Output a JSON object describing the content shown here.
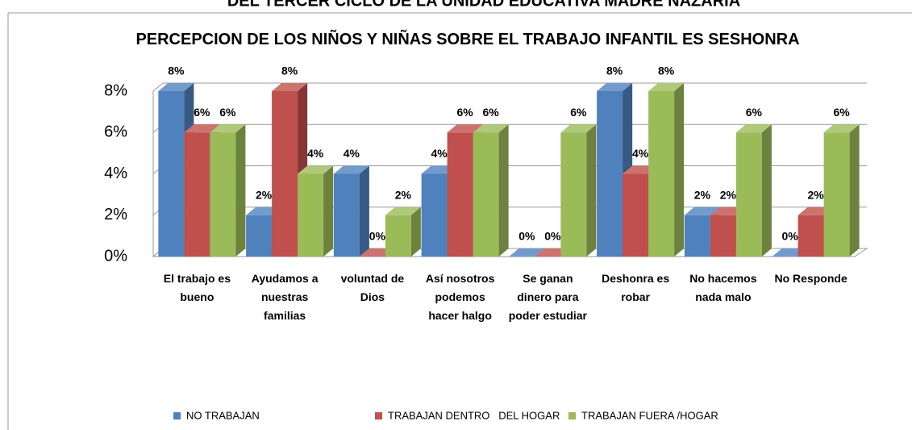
{
  "heading": "DEL TERCER CICLO DE LA UNIDAD EDUCATIVA MADRE NAZARIA",
  "chart_data": {
    "type": "bar",
    "title": "PERCEPCION DE LOS NIÑOS Y NIÑAS SOBRE EL TRABAJO INFANTIL ES SESHONRA",
    "categories": [
      "El trabajo es bueno",
      "Ayudamos a nuestras familias",
      "voluntad de Dios",
      "Así nosotros podemos hacer halgo",
      "Se ganan dinero para poder estudiar",
      "Deshonra es robar",
      "No hacemos nada malo",
      "No Responde"
    ],
    "series": [
      {
        "name": "NO TRABAJAN",
        "color": "#4f81bd",
        "values": [
          8,
          2,
          4,
          4,
          0,
          8,
          2,
          0
        ],
        "value_labels": [
          "8%",
          "2%",
          "4%",
          "4%",
          "0%",
          "8%",
          "2%",
          "0%"
        ]
      },
      {
        "name": "TRABAJAN DENTRO   DEL HOGAR",
        "color": "#c0504d",
        "values": [
          6,
          8,
          0,
          6,
          0,
          4,
          2,
          2
        ],
        "value_labels": [
          "6%",
          "8%",
          "0%",
          "6%",
          "0%",
          "4%",
          "2%",
          "2%"
        ]
      },
      {
        "name": "TRABAJAN FUERA /HOGAR",
        "color": "#9bbb59",
        "values": [
          6,
          4,
          2,
          6,
          6,
          8,
          6,
          6
        ],
        "value_labels": [
          "6%",
          "4%",
          "2%",
          "6%",
          "6%",
          "8%",
          "6%",
          "6%"
        ]
      }
    ],
    "ylim": [
      0,
      8
    ],
    "yticks": [
      {
        "value": 0,
        "label": "0%"
      },
      {
        "value": 2,
        "label": "2%"
      },
      {
        "value": 4,
        "label": "4%"
      },
      {
        "value": 6,
        "label": "6%"
      },
      {
        "value": 8,
        "label": "8%"
      }
    ],
    "grid": true,
    "legend": "bottom"
  }
}
